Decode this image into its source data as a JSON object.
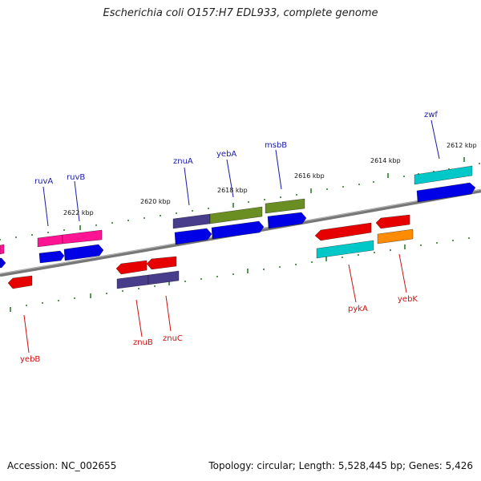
{
  "title": "Escherichia coli O157:H7 EDL933, complete genome",
  "footer": {
    "accession": "Accession: NC_002655",
    "topology": "Topology: circular; Length: 5,528,445 bp; Genes: 5,426"
  },
  "colors": {
    "backbone": "#808080",
    "tick": "#2e7d2e",
    "label_top": "#1a1aa8",
    "label_bottom": "#cc1111",
    "blue": "#0000e6",
    "red": "#e60000",
    "magenta": "#ff1493",
    "olive": "#6b8e23",
    "slate": "#483d8b",
    "cyan": "#00c8c8",
    "orange": "#ff8c00"
  },
  "kbp_labels": [
    "2612 kbp",
    "2614 kbp",
    "2616 kbp",
    "2618 kbp",
    "2620 kbp",
    "2622 kbp"
  ],
  "gene_labels_top": [
    "zwf",
    "msbB",
    "yebA",
    "znuA",
    "ruvB",
    "ruvA"
  ],
  "gene_labels_bottom": [
    "pykA",
    "yebK",
    "znuB",
    "znuC",
    "yebB"
  ]
}
